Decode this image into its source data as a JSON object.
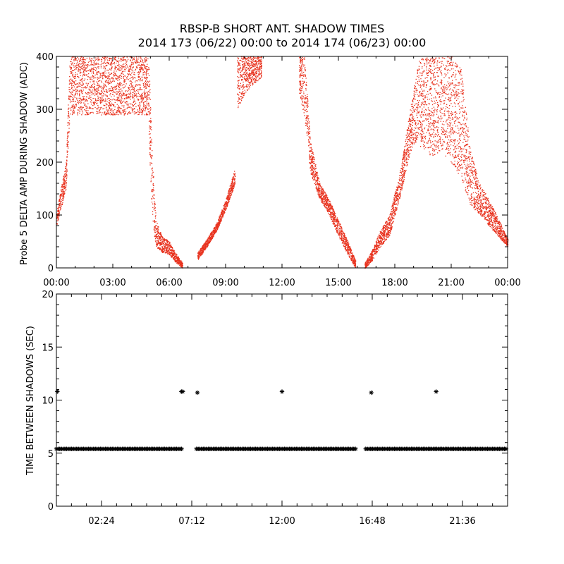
{
  "figure": {
    "title_line1": "RBSP-B SHORT ANT. SHADOW TIMES",
    "title_line2": "2014 173 (06/22) 00:00 to 2014 174 (06/23) 00:00"
  },
  "colors": {
    "top_points": "#e8321e",
    "bottom_points": "#000000",
    "axes": "#000000"
  },
  "chart_data": [
    {
      "type": "scatter",
      "title": "RBSP-B SHORT ANT. SHADOW TIMES",
      "ylabel": "Probe 5 DELTA AMP DURING SHADOW (ADC)",
      "xlabel": "",
      "x_unit": "hours",
      "xlim": [
        0,
        24
      ],
      "ylim": [
        0,
        400
      ],
      "x_ticks": [
        0,
        3,
        6,
        9,
        12,
        15,
        18,
        21,
        24
      ],
      "x_tick_labels": [
        "00:00",
        "03:00",
        "06:00",
        "09:00",
        "12:00",
        "15:00",
        "18:00",
        "21:00",
        "00:00"
      ],
      "y_ticks": [
        0,
        100,
        200,
        300,
        400
      ],
      "y_tick_labels": [
        "0",
        "100",
        "200",
        "300",
        "400"
      ],
      "grid": false,
      "series": [
        {
          "color": "#e8321e",
          "envelope": [
            {
              "x": [
                0.0,
                0.5,
                0.7,
                1.0,
                2.0,
                3.0,
                4.0,
                4.9
              ],
              "y_low": [
                80,
                150,
                290,
                290,
                290,
                290,
                290,
                290
              ],
              "y_high": [
                110,
                200,
                400,
                400,
                400,
                400,
                400,
                400
              ]
            },
            {
              "x": [
                4.9,
                5.1,
                5.3,
                5.6,
                6.0,
                6.3,
                6.7
              ],
              "y_low": [
                250,
                80,
                40,
                30,
                25,
                12,
                0
              ],
              "y_high": [
                400,
                200,
                90,
                60,
                50,
                30,
                10
              ]
            },
            {
              "x": [
                7.5,
                8.0,
                8.5,
                9.0,
                9.5
              ],
              "y_low": [
                15,
                40,
                70,
                110,
                160
              ],
              "y_high": [
                30,
                55,
                85,
                130,
                190
              ]
            },
            {
              "x": [
                9.6,
                10.0,
                10.5,
                10.9
              ],
              "y_low": [
                300,
                330,
                350,
                360
              ],
              "y_high": [
                400,
                400,
                400,
                400
              ]
            },
            {
              "x": [
                12.9,
                13.2,
                13.5,
                14.0,
                14.5,
                15.0,
                15.5,
                15.9
              ],
              "y_low": [
                330,
                280,
                180,
                130,
                100,
                60,
                25,
                0
              ],
              "y_high": [
                400,
                400,
                240,
                160,
                130,
                90,
                50,
                15
              ]
            },
            {
              "x": [
                16.4,
                16.8,
                17.2,
                17.7,
                18.3,
                18.8,
                19.3
              ],
              "y_low": [
                0,
                15,
                40,
                60,
                140,
                220,
                250
              ],
              "y_high": [
                10,
                35,
                70,
                100,
                190,
                300,
                400
              ]
            },
            {
              "x": [
                19.3,
                20.0,
                20.5,
                21.0,
                21.5,
                22.0,
                22.5,
                23.0,
                24.0
              ],
              "y_low": [
                230,
                210,
                220,
                200,
                170,
                120,
                100,
                80,
                40
              ],
              "y_high": [
                400,
                400,
                400,
                400,
                380,
                230,
                160,
                130,
                55
              ]
            }
          ]
        }
      ]
    },
    {
      "type": "scatter",
      "ylabel": "TIME BETWEEN SHADOWS (SEC)",
      "xlabel": "",
      "x_unit": "hours",
      "xlim": [
        0,
        24
      ],
      "ylim": [
        0,
        20
      ],
      "x_ticks": [
        2.4,
        7.2,
        12.0,
        16.8,
        21.6
      ],
      "x_tick_labels": [
        "02:24",
        "07:12",
        "12:00",
        "16:48",
        "21:36"
      ],
      "y_ticks": [
        0,
        5,
        10,
        15,
        20
      ],
      "y_tick_labels": [
        "0",
        "5",
        "10",
        "15",
        "20"
      ],
      "grid": false,
      "series": [
        {
          "color": "#000000",
          "marker": "*",
          "value": 5.4,
          "x_ranges": [
            [
              0.0,
              6.7
            ],
            [
              7.45,
              15.95
            ],
            [
              16.45,
              24.0
            ]
          ]
        },
        {
          "color": "#000000",
          "marker": "*",
          "points": [
            {
              "x": 0.05,
              "y": 10.8
            },
            {
              "x": 6.65,
              "y": 10.8
            },
            {
              "x": 6.72,
              "y": 10.8
            },
            {
              "x": 7.5,
              "y": 10.7
            },
            {
              "x": 12.0,
              "y": 10.8
            },
            {
              "x": 16.75,
              "y": 10.7
            },
            {
              "x": 20.2,
              "y": 10.8
            }
          ]
        }
      ]
    }
  ]
}
